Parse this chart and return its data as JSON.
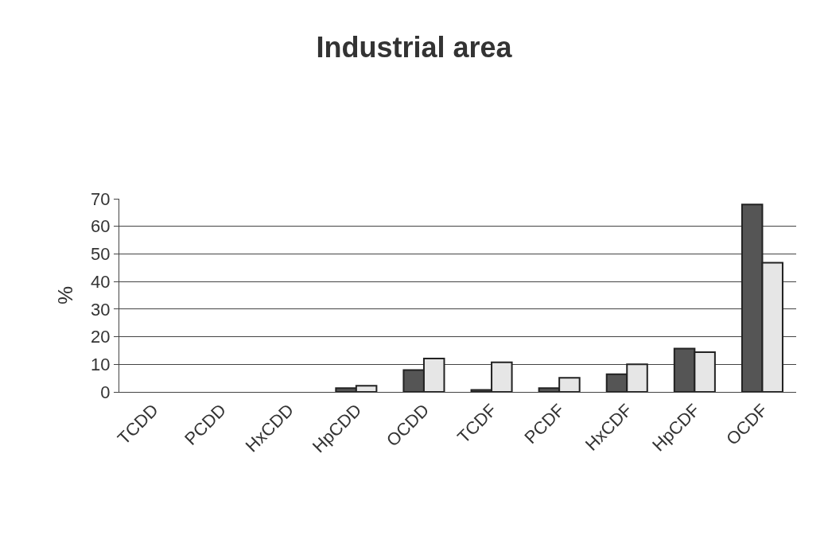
{
  "chart_data": {
    "type": "bar",
    "title": "Industrial area",
    "ylabel": "%",
    "categories": [
      "TCDD",
      "PCDD",
      "HxCDD",
      "HpCDD",
      "OCDD",
      "TCDF",
      "PCDF",
      "HxCDF",
      "HpCDF",
      "OCDF"
    ],
    "series": [
      {
        "color": "#555555",
        "values": [
          0,
          0,
          0,
          1.4,
          7.9,
          0.7,
          1.4,
          6.4,
          15.7,
          67.9
        ]
      },
      {
        "color": "#e6e6e6",
        "values": [
          0,
          0,
          0,
          2.2,
          12.1,
          10.7,
          5.1,
          10.0,
          14.4,
          46.8
        ]
      }
    ],
    "ylim": [
      0,
      70
    ],
    "yticks": [
      0,
      10,
      20,
      30,
      40,
      50,
      60,
      70
    ],
    "grid": "y"
  }
}
